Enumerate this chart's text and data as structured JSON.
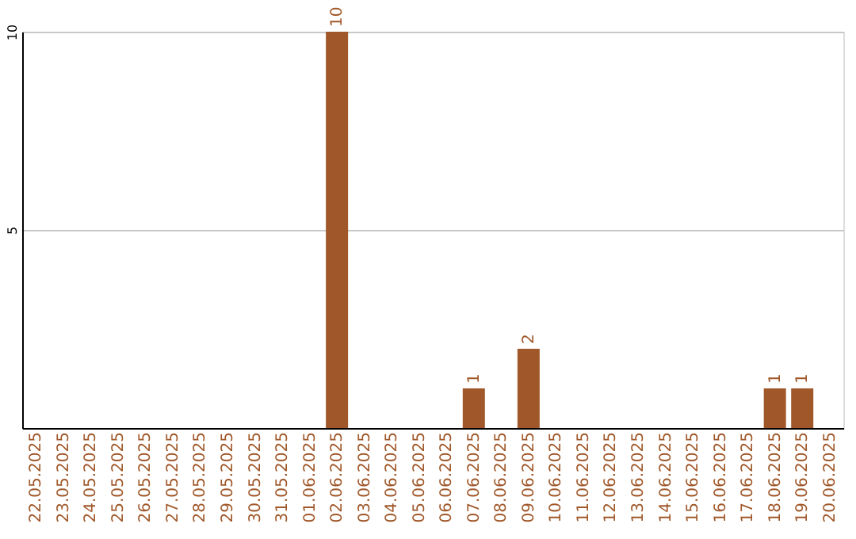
{
  "chart_data": {
    "type": "bar",
    "categories": [
      "22.05.2025",
      "23.05.2025",
      "24.05.2025",
      "25.05.2025",
      "26.05.2025",
      "27.05.2025",
      "28.05.2025",
      "29.05.2025",
      "30.05.2025",
      "31.05.2025",
      "01.06.2025",
      "02.06.2025",
      "03.06.2025",
      "04.06.2025",
      "05.06.2025",
      "06.06.2025",
      "07.06.2025",
      "08.06.2025",
      "09.06.2025",
      "10.06.2025",
      "11.06.2025",
      "12.06.2025",
      "13.06.2025",
      "14.06.2025",
      "15.06.2025",
      "16.06.2025",
      "17.06.2025",
      "18.06.2025",
      "19.06.2025",
      "20.06.2025"
    ],
    "values": [
      0,
      0,
      0,
      0,
      0,
      0,
      0,
      0,
      0,
      0,
      0,
      10,
      0,
      0,
      0,
      0,
      1,
      0,
      2,
      0,
      0,
      0,
      0,
      0,
      0,
      0,
      0,
      1,
      1,
      0
    ],
    "value_labels": [
      null,
      null,
      null,
      null,
      null,
      null,
      null,
      null,
      null,
      null,
      null,
      "10",
      null,
      null,
      null,
      null,
      "1",
      null,
      "2",
      null,
      null,
      null,
      null,
      null,
      null,
      null,
      null,
      "1",
      "1",
      null
    ],
    "color": "#a0582a",
    "ylim": [
      0,
      10
    ],
    "yticks": [
      5,
      10
    ],
    "grid": "y"
  }
}
